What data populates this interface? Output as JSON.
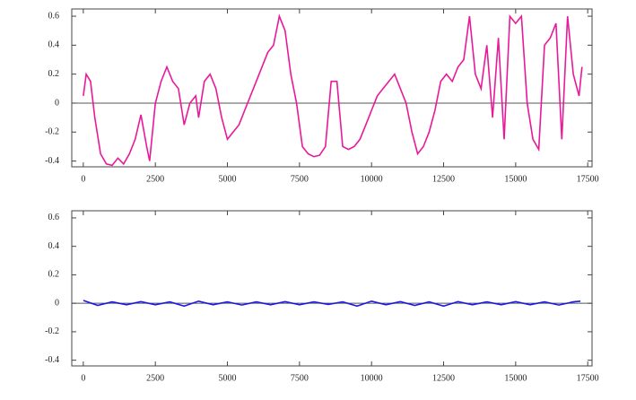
{
  "chart_data": [
    {
      "type": "line",
      "x": [
        0,
        100,
        250,
        400,
        600,
        800,
        1000,
        1200,
        1400,
        1600,
        1800,
        2000,
        2200,
        2300,
        2500,
        2700,
        2900,
        3100,
        3300,
        3500,
        3700,
        3900,
        4000,
        4200,
        4400,
        4600,
        4800,
        5000,
        5200,
        5400,
        5600,
        5800,
        6000,
        6200,
        6400,
        6600,
        6800,
        7000,
        7200,
        7400,
        7600,
        7800,
        8000,
        8200,
        8400,
        8600,
        8800,
        9000,
        9200,
        9400,
        9600,
        9800,
        10000,
        10200,
        10400,
        10600,
        10800,
        11000,
        11200,
        11400,
        11600,
        11800,
        12000,
        12200,
        12400,
        12600,
        12800,
        13000,
        13200,
        13400,
        13600,
        13800,
        14000,
        14200,
        14400,
        14600,
        14800,
        15000,
        15200,
        15400,
        15600,
        15800,
        16000,
        16200,
        16400,
        16600,
        16800,
        17000,
        17200,
        17300
      ],
      "series": [
        {
          "color": "#e8199a",
          "values": [
            0.05,
            0.2,
            0.15,
            -0.1,
            -0.35,
            -0.42,
            -0.43,
            -0.38,
            -0.42,
            -0.35,
            -0.25,
            -0.08,
            -0.3,
            -0.4,
            0.0,
            0.15,
            0.25,
            0.15,
            0.1,
            -0.15,
            0.0,
            0.05,
            -0.1,
            0.15,
            0.2,
            0.1,
            -0.1,
            -0.25,
            -0.2,
            -0.15,
            -0.05,
            0.05,
            0.15,
            0.25,
            0.35,
            0.4,
            0.6,
            0.5,
            0.2,
            0.0,
            -0.3,
            -0.35,
            -0.37,
            -0.36,
            -0.3,
            0.15,
            0.15,
            -0.3,
            -0.32,
            -0.3,
            -0.25,
            -0.15,
            -0.05,
            0.05,
            0.1,
            0.15,
            0.2,
            0.1,
            0.0,
            -0.2,
            -0.35,
            -0.3,
            -0.2,
            -0.05,
            0.15,
            0.2,
            0.15,
            0.25,
            0.3,
            0.6,
            0.2,
            0.1,
            0.4,
            -0.1,
            0.45,
            -0.25,
            0.6,
            0.55,
            0.6,
            0.0,
            -0.25,
            -0.32,
            0.4,
            0.45,
            0.55,
            -0.25,
            0.6,
            0.2,
            0.05,
            0.25
          ]
        }
      ],
      "xlim": [
        -400,
        17650
      ],
      "ylim": [
        -0.44,
        0.65
      ],
      "xticks": [
        0,
        2500,
        5000,
        7500,
        10000,
        12500,
        15000,
        17500
      ],
      "yticks": [
        -0.4,
        -0.2,
        0,
        0.2,
        0.4,
        0.6
      ]
    },
    {
      "type": "line",
      "x": [
        0,
        500,
        1000,
        1500,
        2000,
        2500,
        3000,
        3500,
        4000,
        4500,
        5000,
        5500,
        6000,
        6500,
        7000,
        7500,
        8000,
        8500,
        9000,
        9500,
        10000,
        10500,
        11000,
        11500,
        12000,
        12500,
        13000,
        13500,
        14000,
        14500,
        15000,
        15500,
        16000,
        16500,
        17000,
        17250
      ],
      "series": [
        {
          "color": "#1a1ae6",
          "values": [
            0.02,
            -0.015,
            0.01,
            -0.01,
            0.012,
            -0.01,
            0.01,
            -0.02,
            0.015,
            -0.01,
            0.01,
            -0.012,
            0.01,
            -0.01,
            0.012,
            -0.01,
            0.01,
            -0.008,
            0.01,
            -0.02,
            0.015,
            -0.01,
            0.012,
            -0.015,
            0.01,
            -0.02,
            0.012,
            -0.01,
            0.01,
            -0.01,
            0.012,
            -0.01,
            0.01,
            -0.012,
            0.01,
            0.015
          ]
        }
      ],
      "xlim": [
        -400,
        17650
      ],
      "ylim": [
        -0.44,
        0.65
      ],
      "xticks": [
        0,
        2500,
        5000,
        7500,
        10000,
        12500,
        15000,
        17500
      ],
      "yticks": [
        -0.4,
        -0.2,
        0,
        0.2,
        0.4,
        0.6
      ]
    }
  ]
}
